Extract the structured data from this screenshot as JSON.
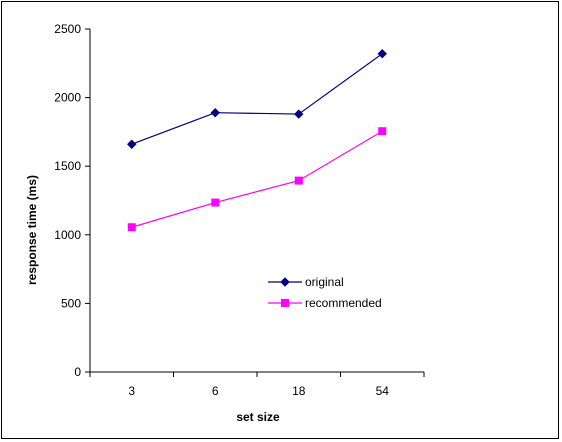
{
  "chart_data": {
    "type": "line",
    "title": "",
    "xlabel": "set size",
    "ylabel": "response time (ms)",
    "categories": [
      "3",
      "6",
      "18",
      "54"
    ],
    "ylim": [
      0,
      2500
    ],
    "yticks": [
      "0",
      "500",
      "1000",
      "1500",
      "2000",
      "2500"
    ],
    "grid": false,
    "legend_position": "center-right",
    "series": [
      {
        "name": "original",
        "values": [
          1660,
          1890,
          1880,
          2320
        ],
        "color": "#000080",
        "marker": "diamond"
      },
      {
        "name": "recommended",
        "values": [
          1055,
          1235,
          1395,
          1755
        ],
        "color": "#ff00ff",
        "marker": "square"
      }
    ]
  }
}
